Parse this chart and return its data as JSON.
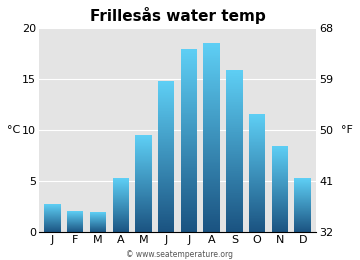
{
  "months": [
    "J",
    "F",
    "M",
    "A",
    "M",
    "J",
    "J",
    "A",
    "S",
    "O",
    "N",
    "D"
  ],
  "values": [
    2.8,
    2.1,
    2.0,
    5.3,
    9.5,
    14.8,
    17.9,
    18.5,
    15.9,
    11.6,
    8.5,
    5.3
  ],
  "title": "Frillesås water temp",
  "ylabel_left": "°C",
  "ylabel_right": "°F",
  "ylim": [
    0,
    20
  ],
  "yticks_left": [
    0,
    5,
    10,
    15,
    20
  ],
  "yticks_right": [
    32,
    41,
    50,
    59,
    68
  ],
  "background_color": "#e4e4e4",
  "bar_color_top": "#5ecff5",
  "bar_color_bottom": "#1a5280",
  "watermark": "© www.seatemperature.org",
  "title_fontsize": 11,
  "tick_fontsize": 8
}
